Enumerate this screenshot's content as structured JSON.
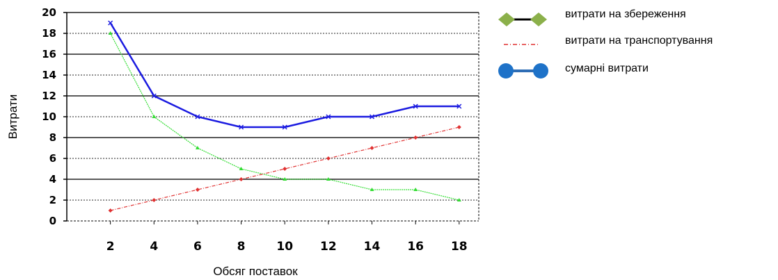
{
  "chart_data": {
    "type": "line",
    "x": [
      2,
      4,
      6,
      8,
      10,
      12,
      14,
      16,
      18
    ],
    "xlabel": "Обсяг поставок",
    "ylabel": "Витрати",
    "ylim": [
      0,
      20
    ],
    "yticks": [
      "0",
      "2",
      "4",
      "6",
      "8",
      "10",
      "12",
      "14",
      "16",
      "18",
      "20"
    ],
    "xticks": [
      "2",
      "4",
      "6",
      "8",
      "10",
      "12",
      "14",
      "16",
      "18"
    ],
    "grid": true,
    "legend_position": "right",
    "series": [
      {
        "name": "витрати на збереження",
        "values": [
          18,
          10,
          7,
          5,
          4,
          4,
          3,
          3,
          2
        ],
        "color": "#33dd33"
      },
      {
        "name": "витрати на транспортування",
        "values": [
          1,
          2,
          3,
          4,
          5,
          6,
          7,
          8,
          9
        ],
        "color": "#e03030"
      },
      {
        "name": "сумарні витрати",
        "values": [
          19,
          12,
          10,
          9,
          9,
          10,
          10,
          11,
          11
        ],
        "color": "#1a1ae0"
      }
    ]
  },
  "legend": {
    "items": [
      {
        "label": "витрати на збереження",
        "icon": "green-diamond-line",
        "line_color": "#000000",
        "marker_color": "#8bb04a"
      },
      {
        "label": "витрати на транспортування",
        "icon": "red-dashed-line",
        "line_color": "#e03030"
      },
      {
        "label": "сумарні витрати",
        "icon": "blue-circle-line",
        "line_color": "#2e6db5",
        "marker_color": "#1e72c8"
      }
    ]
  }
}
